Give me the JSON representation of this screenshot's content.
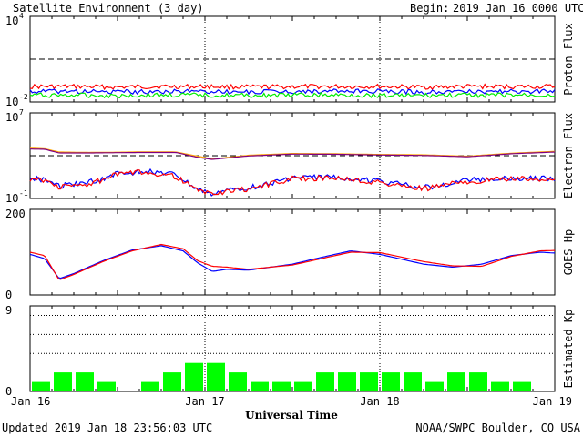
{
  "header": {
    "title": "Satellite Environment (3 day)",
    "begin_label": "Begin:",
    "begin_value": "2019 Jan 16 0000 UTC"
  },
  "footer": {
    "updated": "Updated 2019 Jan 18 23:56:03 UTC",
    "credit": "NOAA/SWPC Boulder, CO USA"
  },
  "chart_data": [
    {
      "id": "proton",
      "type": "line",
      "ylabel": "Proton Flux",
      "scale": "log",
      "ylim": [
        0.01,
        10000
      ],
      "tick_labels": [
        "10",
        "10"
      ],
      "tick_exponents": [
        "4",
        "-2"
      ],
      "threshold": 10,
      "x": [
        0,
        6,
        12,
        18,
        24,
        30,
        36,
        42,
        48,
        54,
        60,
        66,
        72
      ],
      "series": [
        {
          "color": "#ff0000",
          "values": [
            0.12,
            0.12,
            0.11,
            0.12,
            0.12,
            0.11,
            0.12,
            0.12,
            0.12,
            0.11,
            0.12,
            0.12,
            0.12
          ]
        },
        {
          "color": "#0000ff",
          "values": [
            0.055,
            0.055,
            0.05,
            0.055,
            0.055,
            0.05,
            0.055,
            0.055,
            0.055,
            0.05,
            0.055,
            0.055,
            0.055
          ]
        },
        {
          "color": "#00ee00",
          "values": [
            0.03,
            0.03,
            0.028,
            0.03,
            0.03,
            0.028,
            0.03,
            0.03,
            0.03,
            0.028,
            0.03,
            0.03,
            0.03
          ]
        }
      ]
    },
    {
      "id": "electron",
      "type": "line",
      "ylabel": "Electron Flux",
      "scale": "log",
      "ylim": [
        0.1,
        10000000
      ],
      "tick_labels": [
        "10",
        "10"
      ],
      "tick_exponents": [
        "7",
        "-1"
      ],
      "threshold": 1000,
      "x": [
        0,
        2,
        4,
        8,
        12,
        16,
        20,
        23,
        25,
        30,
        36,
        42,
        48,
        54,
        60,
        66,
        72
      ],
      "series": [
        {
          "color": "#ffa500",
          "values": [
            5000,
            4500,
            2200,
            2000,
            2100,
            2300,
            2200,
            900,
            500,
            1100,
            1600,
            1500,
            1300,
            1200,
            900,
            1700,
            2500
          ]
        },
        {
          "color": "#800080",
          "values": [
            4200,
            4000,
            1800,
            1800,
            1900,
            2000,
            2000,
            700,
            450,
            950,
            1400,
            1350,
            1150,
            1050,
            800,
            1500,
            2200
          ]
        },
        {
          "color": "#0000ff",
          "values": [
            8,
            6,
            1.5,
            3,
            20,
            35,
            15,
            0.6,
            0.3,
            1,
            8,
            10,
            4,
            1,
            5,
            8,
            7
          ]
        },
        {
          "color": "#ff0000",
          "values": [
            7,
            5,
            1.2,
            2,
            18,
            30,
            12,
            0.5,
            0.3,
            0.8,
            7,
            9,
            3,
            0.8,
            4,
            7,
            6
          ]
        }
      ]
    },
    {
      "id": "goes",
      "type": "line",
      "ylabel": "GOES Hp",
      "scale": "linear",
      "ylim": [
        0,
        200
      ],
      "tick_labels": [
        "200",
        "0"
      ],
      "x": [
        0,
        2,
        4,
        6,
        10,
        14,
        18,
        21,
        23,
        25,
        27,
        30,
        36,
        40,
        44,
        48,
        54,
        58,
        62,
        66,
        70,
        72
      ],
      "series": [
        {
          "color": "#0000ff",
          "values": [
            95,
            85,
            38,
            50,
            80,
            105,
            115,
            103,
            75,
            55,
            60,
            58,
            72,
            88,
            103,
            95,
            72,
            65,
            72,
            92,
            100,
            98
          ]
        },
        {
          "color": "#ff0000",
          "values": [
            100,
            92,
            35,
            48,
            78,
            103,
            118,
            108,
            80,
            67,
            65,
            60,
            70,
            85,
            100,
            99,
            78,
            68,
            67,
            90,
            103,
            104
          ]
        }
      ]
    },
    {
      "id": "kp",
      "type": "bar",
      "ylabel": "Estimated Kp",
      "ylim": [
        0,
        9
      ],
      "tick_labels": [
        "9",
        "0"
      ],
      "gridlines": [
        4,
        6,
        8
      ],
      "color": "#00ff00",
      "bar_hours": 3,
      "values": [
        1,
        2,
        2,
        1,
        0,
        1,
        2,
        3,
        3,
        2,
        1,
        1,
        1,
        2,
        2,
        2,
        2,
        2,
        1,
        2,
        2,
        1,
        1,
        0
      ]
    }
  ],
  "x_axis": {
    "title": "Universal Time",
    "tick_labels": [
      "Jan 16",
      "Jan 17",
      "Jan 18",
      "Jan 19"
    ],
    "tick_hours": [
      0,
      24,
      48,
      72
    ]
  }
}
